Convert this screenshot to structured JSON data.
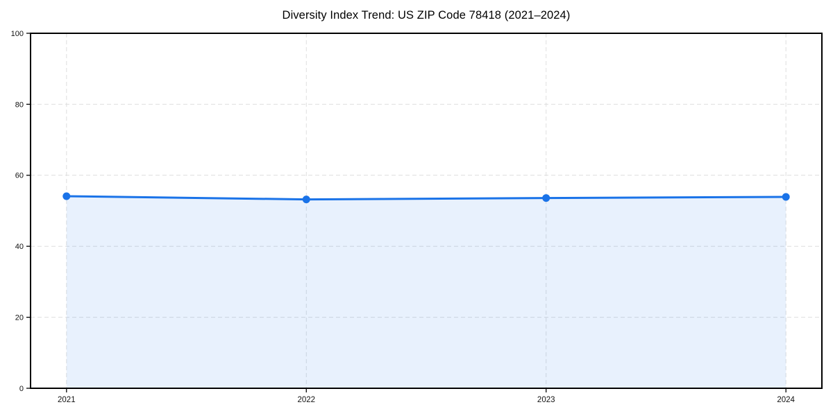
{
  "chart_data": {
    "type": "area",
    "title": "Diversity Index Trend: US ZIP Code 78418 (2021–2024)",
    "categories": [
      "2021",
      "2022",
      "2023",
      "2024"
    ],
    "x": [
      2021,
      2022,
      2023,
      2024
    ],
    "series": [
      {
        "name": "Diversity Index",
        "values": [
          54.1,
          53.2,
          53.6,
          53.9
        ]
      }
    ],
    "xlabel": "",
    "ylabel": "",
    "ylim": [
      0,
      100
    ],
    "xlim": [
      2020.85,
      2024.15
    ],
    "yticks": [
      0,
      20,
      40,
      60,
      80,
      100
    ],
    "xticks": [
      "2021",
      "2022",
      "2023",
      "2024"
    ],
    "grid": "dashed-both-axes",
    "legend_position": "none",
    "colors": {
      "line": "#1a73e8",
      "marker": "#1a73e8",
      "area_fill": "rgba(26,115,232,0.10)",
      "gridline": "#dedede",
      "spine": "#000000",
      "tick_label": "#111111",
      "background": "#ffffff"
    }
  }
}
